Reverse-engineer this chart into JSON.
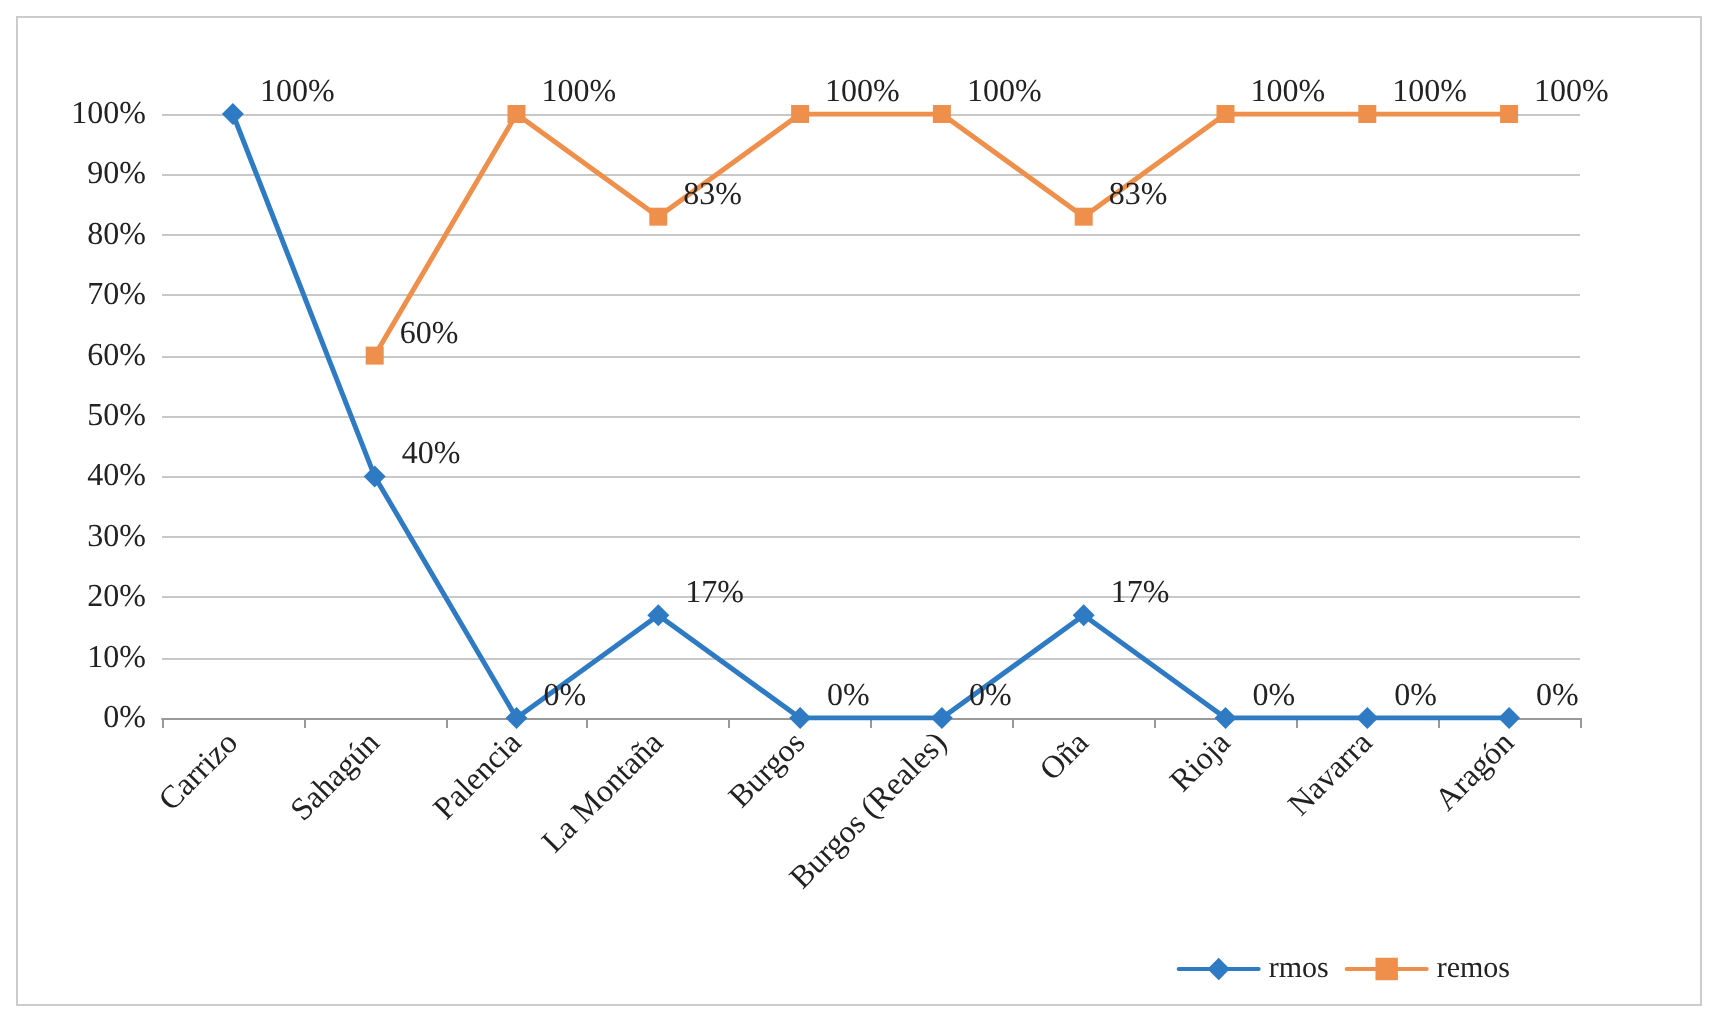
{
  "chart_data": {
    "type": "line",
    "categories": [
      "Carrizo",
      "Sahagún",
      "Palencia",
      "La Montaña",
      "Burgos",
      "Burgos (Reales)",
      "Oña",
      "Rioja",
      "Navarra",
      "Aragón"
    ],
    "series": [
      {
        "name": "rmos",
        "color": "#2e7bc4",
        "marker": "diamond",
        "values": [
          100,
          40,
          0,
          17,
          0,
          0,
          17,
          0,
          0,
          0
        ],
        "value_labels": [
          "100%",
          "40%",
          "0%",
          "17%",
          "0%",
          "0%",
          "17%",
          "0%",
          "0%",
          "0%"
        ]
      },
      {
        "name": "remos",
        "color": "#ee8f4c",
        "marker": "square",
        "values": [
          null,
          60,
          100,
          83,
          100,
          100,
          83,
          100,
          100,
          100
        ],
        "value_labels": [
          null,
          "60%",
          "100%",
          "83%",
          "100%",
          "100%",
          "83%",
          "100%",
          "100%",
          "100%"
        ]
      }
    ],
    "ylim": [
      0,
      100
    ],
    "yticks": [
      {
        "value": 0,
        "label": "0%"
      },
      {
        "value": 10,
        "label": "10%"
      },
      {
        "value": 20,
        "label": "20%"
      },
      {
        "value": 30,
        "label": "30%"
      },
      {
        "value": 40,
        "label": "40%"
      },
      {
        "value": 50,
        "label": "50%"
      },
      {
        "value": 60,
        "label": "60%"
      },
      {
        "value": 70,
        "label": "70%"
      },
      {
        "value": 80,
        "label": "80%"
      },
      {
        "value": 90,
        "label": "90%"
      },
      {
        "value": 100,
        "label": "100%"
      }
    ],
    "grid": "y",
    "legend": "bottom"
  }
}
